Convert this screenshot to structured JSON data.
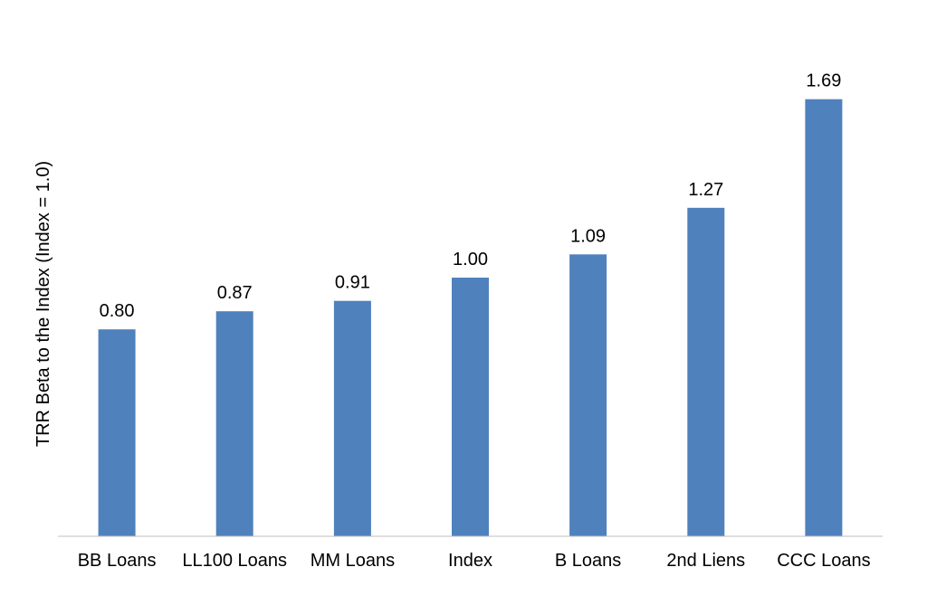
{
  "chart_data": {
    "type": "bar",
    "title": "",
    "xlabel": "",
    "ylabel": "TRR Beta to the Index (Index = 1.0)",
    "categories": [
      "BB Loans",
      "LL100 Loans",
      "MM Loans",
      "Index",
      "B Loans",
      "2nd Liens",
      "CCC Loans"
    ],
    "values": [
      0.8,
      0.87,
      0.91,
      1.0,
      1.09,
      1.27,
      1.69
    ],
    "value_labels": [
      "0.80",
      "0.87",
      "0.91",
      "1.00",
      "1.09",
      "1.27",
      "1.69"
    ],
    "ylim": [
      0,
      1.8
    ],
    "grid": false,
    "legend": "none",
    "bar_color": "#4f81bd",
    "axis_color": "#bfbfbf"
  }
}
